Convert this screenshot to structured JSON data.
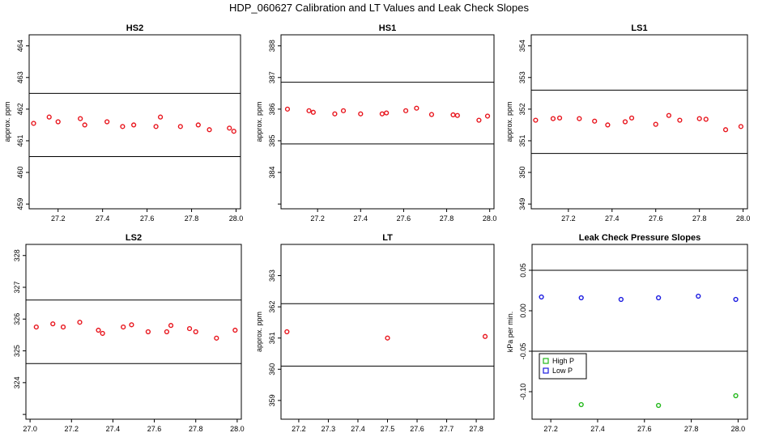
{
  "figure": {
    "title": "HDP_060627  Calibration and LT Values and Leak Check Slopes"
  },
  "chart_data": [
    {
      "type": "scatter",
      "title": "HS2",
      "ylabel": "approx. ppm",
      "xlim": [
        27.07,
        28.02
      ],
      "ylim": [
        458.85,
        464.35
      ],
      "xticks": [
        27.2,
        27.4,
        27.6,
        27.8,
        28.0
      ],
      "xtick_labels": [
        "27.2",
        "27.4",
        "27.6",
        "27.8",
        "28.0"
      ],
      "yticks": [
        459,
        460,
        461,
        462,
        463,
        464
      ],
      "ytick_labels": [
        "459",
        "460",
        "461",
        "462",
        "463",
        "464"
      ],
      "hlines": [
        460.5,
        462.5
      ],
      "series": [
        {
          "color": "#e8141c",
          "points": [
            [
              27.09,
              461.55
            ],
            [
              27.16,
              461.75
            ],
            [
              27.2,
              461.6
            ],
            [
              27.3,
              461.7
            ],
            [
              27.32,
              461.5
            ],
            [
              27.42,
              461.6
            ],
            [
              27.49,
              461.45
            ],
            [
              27.54,
              461.5
            ],
            [
              27.64,
              461.45
            ],
            [
              27.66,
              461.75
            ],
            [
              27.75,
              461.45
            ],
            [
              27.83,
              461.5
            ],
            [
              27.88,
              461.35
            ],
            [
              27.97,
              461.4
            ],
            [
              27.99,
              461.3
            ]
          ]
        }
      ]
    },
    {
      "type": "scatter",
      "title": "HS1",
      "ylabel": "approx. ppm",
      "xlim": [
        27.03,
        28.02
      ],
      "ylim": [
        382.85,
        388.35
      ],
      "xticks": [
        27.2,
        27.4,
        27.6,
        27.8,
        28.0
      ],
      "xtick_labels": [
        "27.2",
        "27.4",
        "27.6",
        "27.8",
        "28.0"
      ],
      "yticks": [
        383,
        384,
        385,
        386,
        387,
        388
      ],
      "ytick_labels": [
        "",
        "384",
        "385",
        "386",
        "387",
        "388"
      ],
      "hlines": [
        384.9,
        386.85
      ],
      "series": [
        {
          "color": "#e8141c",
          "points": [
            [
              27.06,
              386.0
            ],
            [
              27.16,
              385.95
            ],
            [
              27.18,
              385.9
            ],
            [
              27.28,
              385.85
            ],
            [
              27.32,
              385.95
            ],
            [
              27.4,
              385.85
            ],
            [
              27.5,
              385.85
            ],
            [
              27.52,
              385.88
            ],
            [
              27.61,
              385.95
            ],
            [
              27.66,
              386.03
            ],
            [
              27.73,
              385.83
            ],
            [
              27.83,
              385.82
            ],
            [
              27.85,
              385.8
            ],
            [
              27.95,
              385.65
            ],
            [
              27.99,
              385.78
            ]
          ]
        }
      ]
    },
    {
      "type": "scatter",
      "title": "LS1",
      "ylabel": "approx. ppm",
      "xlim": [
        27.03,
        28.02
      ],
      "ylim": [
        348.85,
        354.35
      ],
      "xticks": [
        27.2,
        27.4,
        27.6,
        27.8,
        28.0
      ],
      "xtick_labels": [
        "27.2",
        "27.4",
        "27.6",
        "27.8",
        "28.0"
      ],
      "yticks": [
        349,
        350,
        351,
        352,
        353,
        354
      ],
      "ytick_labels": [
        "349",
        "350",
        "351",
        "352",
        "353",
        "354"
      ],
      "hlines": [
        350.6,
        352.6
      ],
      "series": [
        {
          "color": "#e8141c",
          "points": [
            [
              27.05,
              351.65
            ],
            [
              27.13,
              351.7
            ],
            [
              27.16,
              351.72
            ],
            [
              27.25,
              351.7
            ],
            [
              27.32,
              351.62
            ],
            [
              27.38,
              351.5
            ],
            [
              27.46,
              351.6
            ],
            [
              27.49,
              351.72
            ],
            [
              27.6,
              351.52
            ],
            [
              27.66,
              351.8
            ],
            [
              27.71,
              351.65
            ],
            [
              27.8,
              351.7
            ],
            [
              27.83,
              351.68
            ],
            [
              27.92,
              351.35
            ],
            [
              27.99,
              351.45
            ]
          ]
        }
      ]
    },
    {
      "type": "scatter",
      "title": "LS2",
      "ylabel": "",
      "xlim": [
        26.98,
        28.02
      ],
      "ylim": [
        322.85,
        328.35
      ],
      "xticks": [
        27.0,
        27.2,
        27.4,
        27.6,
        27.8,
        28.0
      ],
      "xtick_labels": [
        "27.0",
        "27.2",
        "27.4",
        "27.6",
        "27.8",
        "28.0"
      ],
      "yticks": [
        323,
        324,
        325,
        326,
        327,
        328
      ],
      "ytick_labels": [
        "",
        "324",
        "325",
        "326",
        "327",
        "328"
      ],
      "hlines": [
        324.6,
        326.6
      ],
      "series": [
        {
          "color": "#e8141c",
          "points": [
            [
              27.03,
              325.75
            ],
            [
              27.11,
              325.85
            ],
            [
              27.16,
              325.75
            ],
            [
              27.24,
              325.9
            ],
            [
              27.33,
              325.65
            ],
            [
              27.35,
              325.55
            ],
            [
              27.45,
              325.75
            ],
            [
              27.49,
              325.82
            ],
            [
              27.57,
              325.6
            ],
            [
              27.66,
              325.6
            ],
            [
              27.68,
              325.8
            ],
            [
              27.77,
              325.7
            ],
            [
              27.8,
              325.6
            ],
            [
              27.9,
              325.4
            ],
            [
              27.99,
              325.65
            ]
          ]
        }
      ]
    },
    {
      "type": "scatter",
      "title": "LT",
      "ylabel": "approx. ppm",
      "xlim": [
        27.14,
        27.86
      ],
      "ylim": [
        358.4,
        364.0
      ],
      "xticks": [
        27.2,
        27.3,
        27.4,
        27.5,
        27.6,
        27.7,
        27.8
      ],
      "xtick_labels": [
        "27.2",
        "27.3",
        "27.4",
        "27.5",
        "27.6",
        "27.7",
        "27.8"
      ],
      "yticks": [
        359,
        360,
        361,
        362,
        363
      ],
      "ytick_labels": [
        "359",
        "360",
        "361",
        "362",
        "363"
      ],
      "hlines": [
        360.1,
        362.1
      ],
      "series": [
        {
          "color": "#e8141c",
          "points": [
            [
              27.16,
              361.2
            ],
            [
              27.5,
              361.0
            ],
            [
              27.83,
              361.05
            ]
          ]
        }
      ]
    },
    {
      "type": "scatter",
      "title": "Leak Check Pressure Slopes",
      "ylabel": "kPa per min.",
      "xlim": [
        27.12,
        28.04
      ],
      "ylim": [
        -0.134,
        0.082
      ],
      "xticks": [
        27.2,
        27.4,
        27.6,
        27.8,
        28.0
      ],
      "xtick_labels": [
        "27.2",
        "27.4",
        "27.6",
        "27.8",
        "28.0"
      ],
      "yticks": [
        -0.1,
        -0.05,
        0.0,
        0.05
      ],
      "ytick_labels": [
        "-0.10",
        "-0.05",
        "0.00",
        "0.05"
      ],
      "hlines": [
        -0.05,
        0.05
      ],
      "legend": {
        "placement": "center-left",
        "entries": [
          "High P",
          "Low P"
        ]
      },
      "series": [
        {
          "name": "High P",
          "color": "#22b81a",
          "points": [
            [
              27.33,
              -0.116
            ],
            [
              27.66,
              -0.117
            ],
            [
              27.99,
              -0.105
            ]
          ]
        },
        {
          "name": "Low P",
          "color": "#1a1ae0",
          "points": [
            [
              27.16,
              0.017
            ],
            [
              27.33,
              0.016
            ],
            [
              27.5,
              0.014
            ],
            [
              27.66,
              0.016
            ],
            [
              27.83,
              0.018
            ],
            [
              27.99,
              0.014
            ]
          ]
        }
      ]
    }
  ]
}
